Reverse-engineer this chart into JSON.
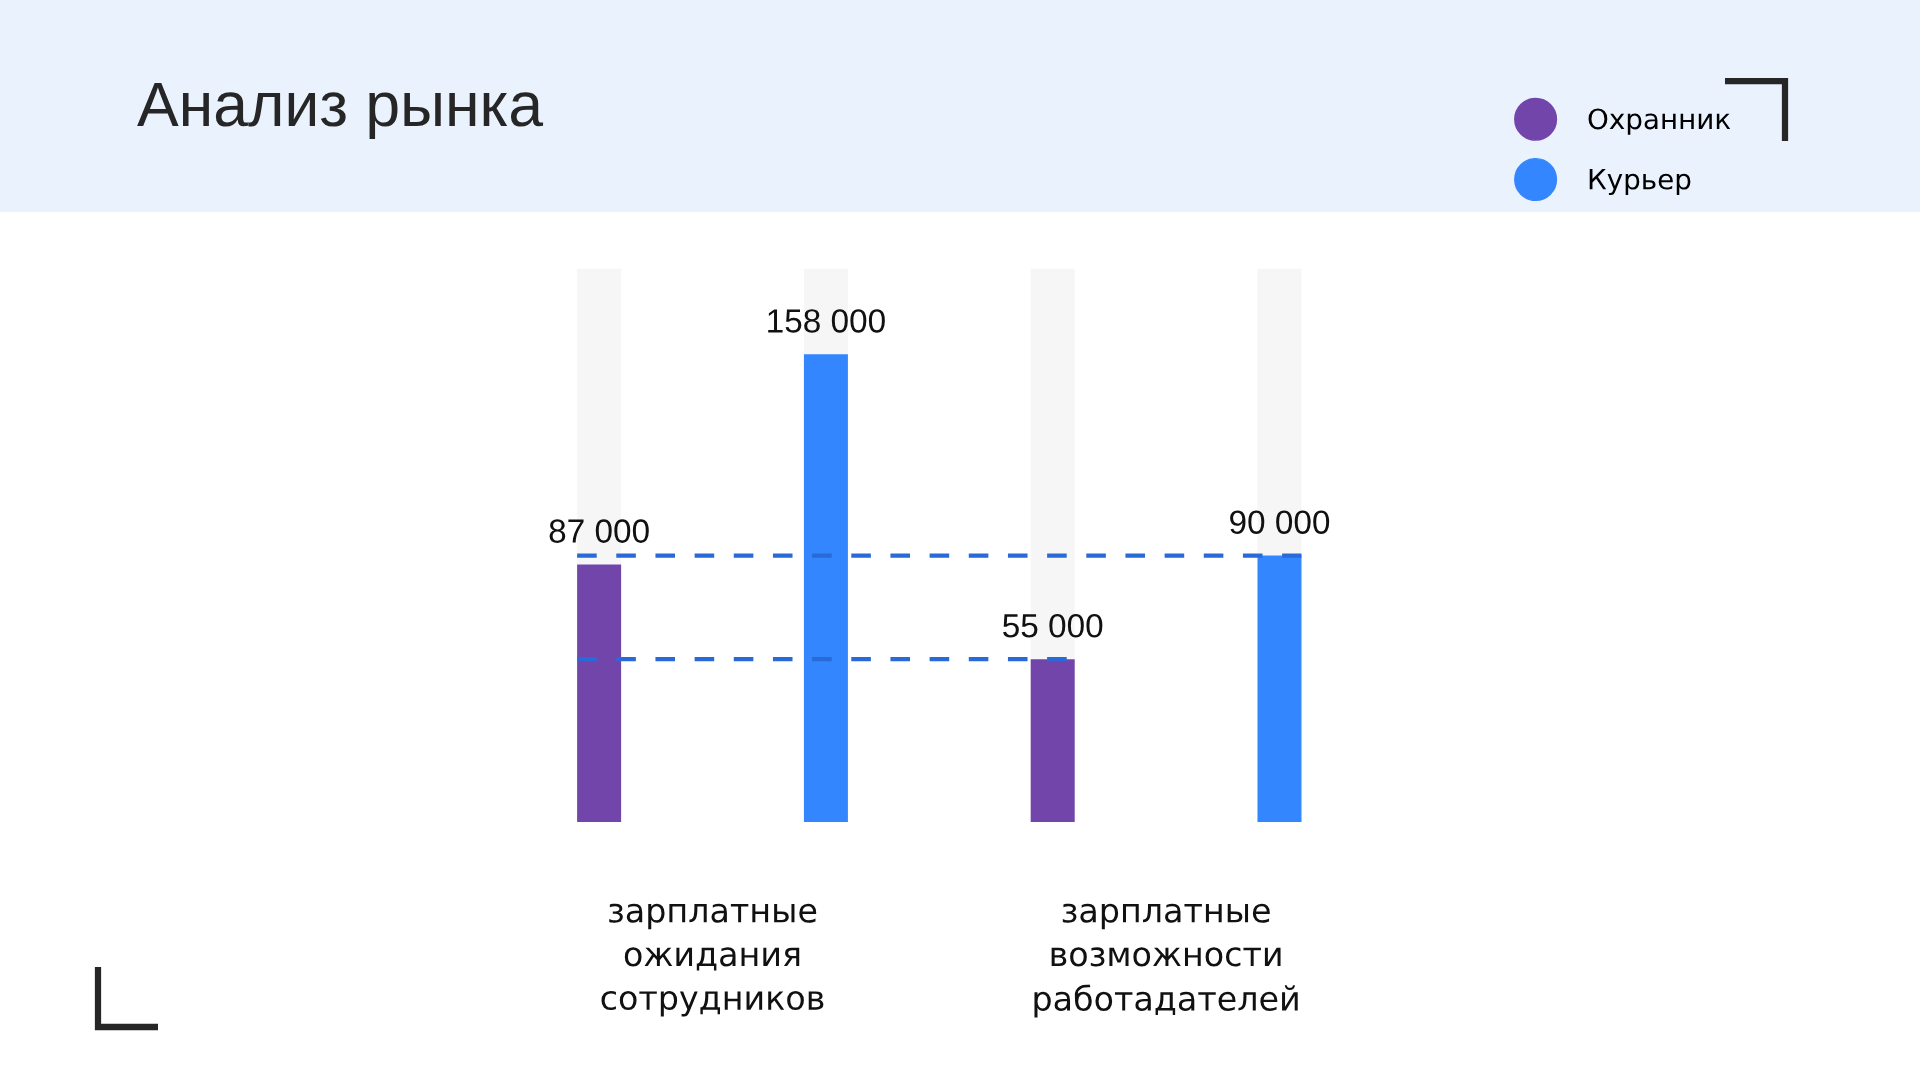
{
  "chart_data": {
    "type": "bar",
    "title": "Анализ рынка",
    "categories": [
      "зарплатные\nожидания\nсотрудников",
      "зарплатные\nвозможности\nработадателей"
    ],
    "series": [
      {
        "name": "Охранник",
        "color": "#7245ab",
        "values": [
          87000,
          55000
        ],
        "value_labels": [
          "87 000",
          "55 000"
        ]
      },
      {
        "name": "Курьер",
        "color": "#3486ff",
        "values": [
          158000,
          90000
        ],
        "value_labels": [
          "158 000",
          "90 000"
        ]
      }
    ],
    "ylim": [
      0,
      187000
    ],
    "tick_labels": "x",
    "legend": "top right",
    "ref_lines": [
      {
        "axis": "y",
        "value": 90000,
        "color": "#2a6ad8",
        "line_style": "dashed"
      },
      {
        "axis": "y",
        "value": 55000,
        "color": "#2a6ad8",
        "line_style": "dashed"
      }
    ]
  }
}
